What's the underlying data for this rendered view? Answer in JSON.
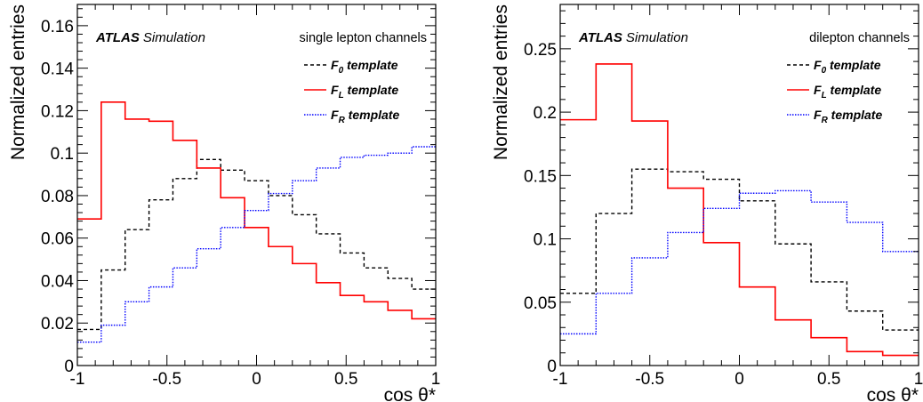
{
  "chart_data": [
    {
      "type": "line",
      "experiment": "ATLAS",
      "experiment_label": "Simulation",
      "channel_label": "single lepton channels",
      "xlabel": "cos θ*",
      "ylabel": "Normalized entries",
      "xlim": [
        -1,
        1
      ],
      "ylim": [
        0,
        0.17
      ],
      "x_ticks": [
        -1,
        -0.5,
        0,
        0.5,
        1
      ],
      "x_tick_labels": [
        "-1",
        "-0.5",
        "0",
        "0.5",
        "1"
      ],
      "y_ticks": [
        0,
        0.02,
        0.04,
        0.06,
        0.08,
        0.1,
        0.12,
        0.14,
        0.16
      ],
      "y_tick_labels": [
        "0",
        "0.02",
        "0.04",
        "0.06",
        "0.08",
        "0.1",
        "0.12",
        "0.14",
        "0.16"
      ],
      "bin_edges": [
        -1,
        -0.8667,
        -0.7333,
        -0.6,
        -0.4667,
        -0.3333,
        -0.2,
        -0.0667,
        0.0667,
        0.2,
        0.3333,
        0.4667,
        0.6,
        0.7333,
        0.8667,
        1
      ],
      "series": [
        {
          "name": "F0",
          "color": "#000000",
          "style": "dashed",
          "values": [
            0.017,
            0.045,
            0.064,
            0.078,
            0.088,
            0.097,
            0.092,
            0.087,
            0.08,
            0.071,
            0.062,
            0.053,
            0.046,
            0.041,
            0.036
          ]
        },
        {
          "name": "FL",
          "color": "#ff0000",
          "style": "solid",
          "values": [
            0.069,
            0.124,
            0.116,
            0.115,
            0.106,
            0.093,
            0.079,
            0.065,
            0.056,
            0.048,
            0.039,
            0.033,
            0.03,
            0.026,
            0.022
          ]
        },
        {
          "name": "FR",
          "color": "#0000ff",
          "style": "dotted",
          "values": [
            0.011,
            0.019,
            0.03,
            0.037,
            0.046,
            0.055,
            0.065,
            0.073,
            0.081,
            0.087,
            0.093,
            0.098,
            0.099,
            0.1,
            0.103
          ]
        }
      ],
      "legend": {
        "placement": "top-right",
        "entries": [
          {
            "prefix": "F",
            "sub": "0",
            "suffix": " template",
            "series": 0
          },
          {
            "prefix": "F",
            "sub": "L",
            "suffix": " template",
            "series": 1
          },
          {
            "prefix": "F",
            "sub": "R",
            "suffix": " template",
            "series": 2
          }
        ]
      }
    },
    {
      "type": "line",
      "experiment": "ATLAS",
      "experiment_label": "Simulation",
      "channel_label": "dilepton channels",
      "xlabel": "cos θ*",
      "ylabel": "Normalized entries",
      "xlim": [
        -1,
        1
      ],
      "ylim": [
        0,
        0.285
      ],
      "x_ticks": [
        -1,
        -0.5,
        0,
        0.5,
        1
      ],
      "x_tick_labels": [
        "-1",
        "-0.5",
        "0",
        "0.5",
        "1"
      ],
      "y_ticks": [
        0,
        0.05,
        0.1,
        0.15,
        0.2,
        0.25
      ],
      "y_tick_labels": [
        "0",
        "0.05",
        "0.1",
        "0.15",
        "0.2",
        "0.25"
      ],
      "bin_edges": [
        -1,
        -0.8,
        -0.6,
        -0.4,
        -0.2,
        0,
        0.2,
        0.4,
        0.6,
        0.8,
        1
      ],
      "series": [
        {
          "name": "F0",
          "color": "#000000",
          "style": "dashed",
          "values": [
            0.057,
            0.12,
            0.155,
            0.153,
            0.147,
            0.13,
            0.096,
            0.066,
            0.043,
            0.028
          ]
        },
        {
          "name": "FL",
          "color": "#ff0000",
          "style": "solid",
          "values": [
            0.194,
            0.238,
            0.193,
            0.14,
            0.097,
            0.062,
            0.036,
            0.022,
            0.011,
            0.008
          ]
        },
        {
          "name": "FR",
          "color": "#0000ff",
          "style": "dotted",
          "values": [
            0.025,
            0.057,
            0.085,
            0.105,
            0.124,
            0.136,
            0.138,
            0.129,
            0.113,
            0.09
          ]
        }
      ],
      "legend": {
        "placement": "top-right",
        "entries": [
          {
            "prefix": "F",
            "sub": "0",
            "suffix": " template",
            "series": 0
          },
          {
            "prefix": "F",
            "sub": "L",
            "suffix": " template",
            "series": 1
          },
          {
            "prefix": "F",
            "sub": "R",
            "suffix": " template",
            "series": 2
          }
        ]
      }
    }
  ]
}
